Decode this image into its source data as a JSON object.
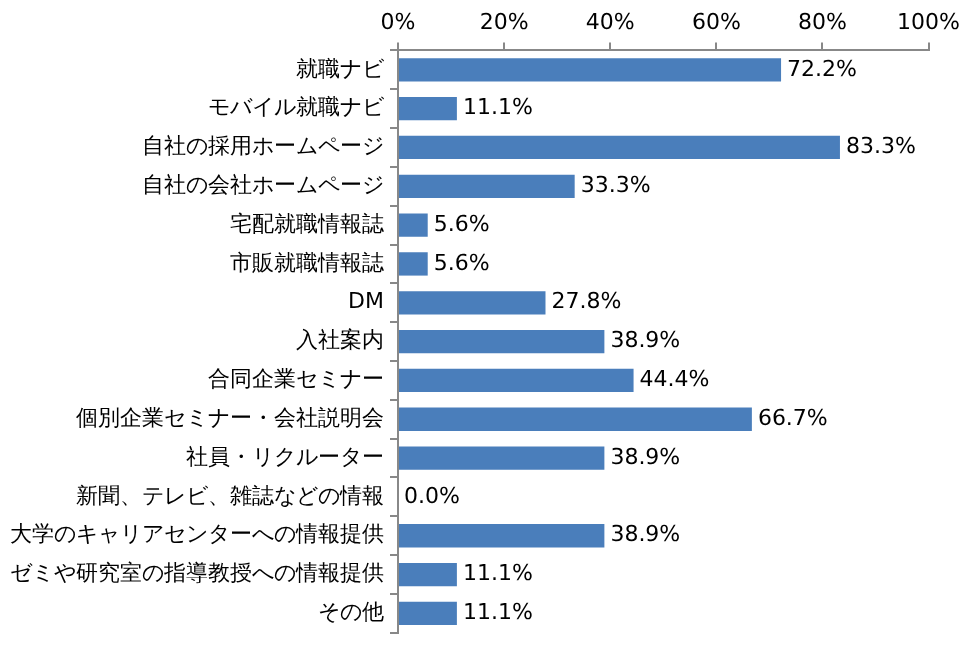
{
  "chart_data": {
    "type": "bar",
    "orientation": "horizontal",
    "categories": [
      "就職ナビ",
      "モバイル就職ナビ",
      "自社の採用ホームページ",
      "自社の会社ホームページ",
      "宅配就職情報誌",
      "市販就職情報誌",
      "DM",
      "入社案内",
      "合同企業セミナー",
      "個別企業セミナー・会社説明会",
      "社員・リクルーター",
      "新聞、テレビ、雑誌などの情報",
      "大学のキャリアセンターへの情報提供",
      "ゼミや研究室の指導教授への情報提供",
      "その他"
    ],
    "values": [
      72.2,
      11.1,
      83.3,
      33.3,
      5.6,
      5.6,
      27.8,
      38.9,
      44.4,
      66.7,
      38.9,
      0.0,
      38.9,
      11.1,
      11.1
    ],
    "value_labels": [
      "72.2%",
      "11.1%",
      "83.3%",
      "33.3%",
      "5.6%",
      "5.6%",
      "27.8%",
      "38.9%",
      "44.4%",
      "66.7%",
      "38.9%",
      "0.0%",
      "38.9%",
      "11.1%",
      "11.1%"
    ],
    "color": "#4a7ebb",
    "xlim": [
      0,
      100
    ],
    "xticks": [
      {
        "value": 0,
        "label": "0%"
      },
      {
        "value": 20,
        "label": "20%"
      },
      {
        "value": 40,
        "label": "40%"
      },
      {
        "value": 60,
        "label": "60%"
      },
      {
        "value": 80,
        "label": "80%"
      },
      {
        "value": 100,
        "label": "100%"
      }
    ],
    "grid": false,
    "legend": false
  }
}
